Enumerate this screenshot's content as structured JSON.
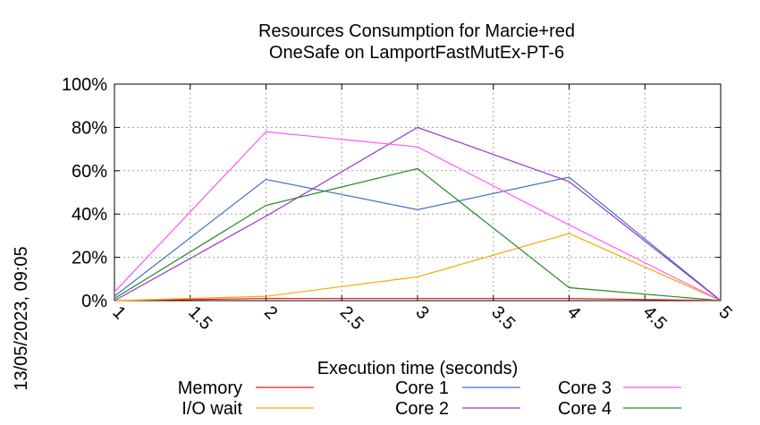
{
  "chart_data": {
    "type": "line",
    "title_lines": [
      "Resources Consumption for Marcie+red",
      "OneSafe on LamportFastMutEx-PT-6"
    ],
    "xlabel": "Execution time (seconds)",
    "side_label": "13/05/2023, 09:05",
    "xlim": [
      1,
      5
    ],
    "ylim": [
      0,
      100
    ],
    "x_ticks": [
      "1",
      "1.5",
      "2",
      "2.5",
      "3",
      "3.5",
      "4",
      "4.5",
      "5"
    ],
    "y_ticks": [
      "0%",
      "20%",
      "40%",
      "60%",
      "80%",
      "100%"
    ],
    "grid": true,
    "legend_position": "bottom",
    "x": [
      1,
      2,
      3,
      4,
      5
    ],
    "series": [
      {
        "name": "Memory",
        "color": "#e41a1c",
        "values": [
          0,
          1,
          1,
          1,
          0
        ]
      },
      {
        "name": "I/O wait",
        "color": "#ffa500",
        "values": [
          0,
          2,
          11,
          31,
          0
        ]
      },
      {
        "name": "Core 1",
        "color": "#4472c4",
        "values": [
          2,
          56,
          42,
          57,
          0
        ]
      },
      {
        "name": "Core 2",
        "color": "#9932cc",
        "values": [
          0,
          39,
          80,
          55,
          0
        ]
      },
      {
        "name": "Core 3",
        "color": "#ff55ff",
        "values": [
          4,
          78,
          71,
          35,
          0
        ]
      },
      {
        "name": "Core 4",
        "color": "#228b22",
        "values": [
          1,
          44,
          61,
          6,
          0
        ]
      }
    ]
  }
}
